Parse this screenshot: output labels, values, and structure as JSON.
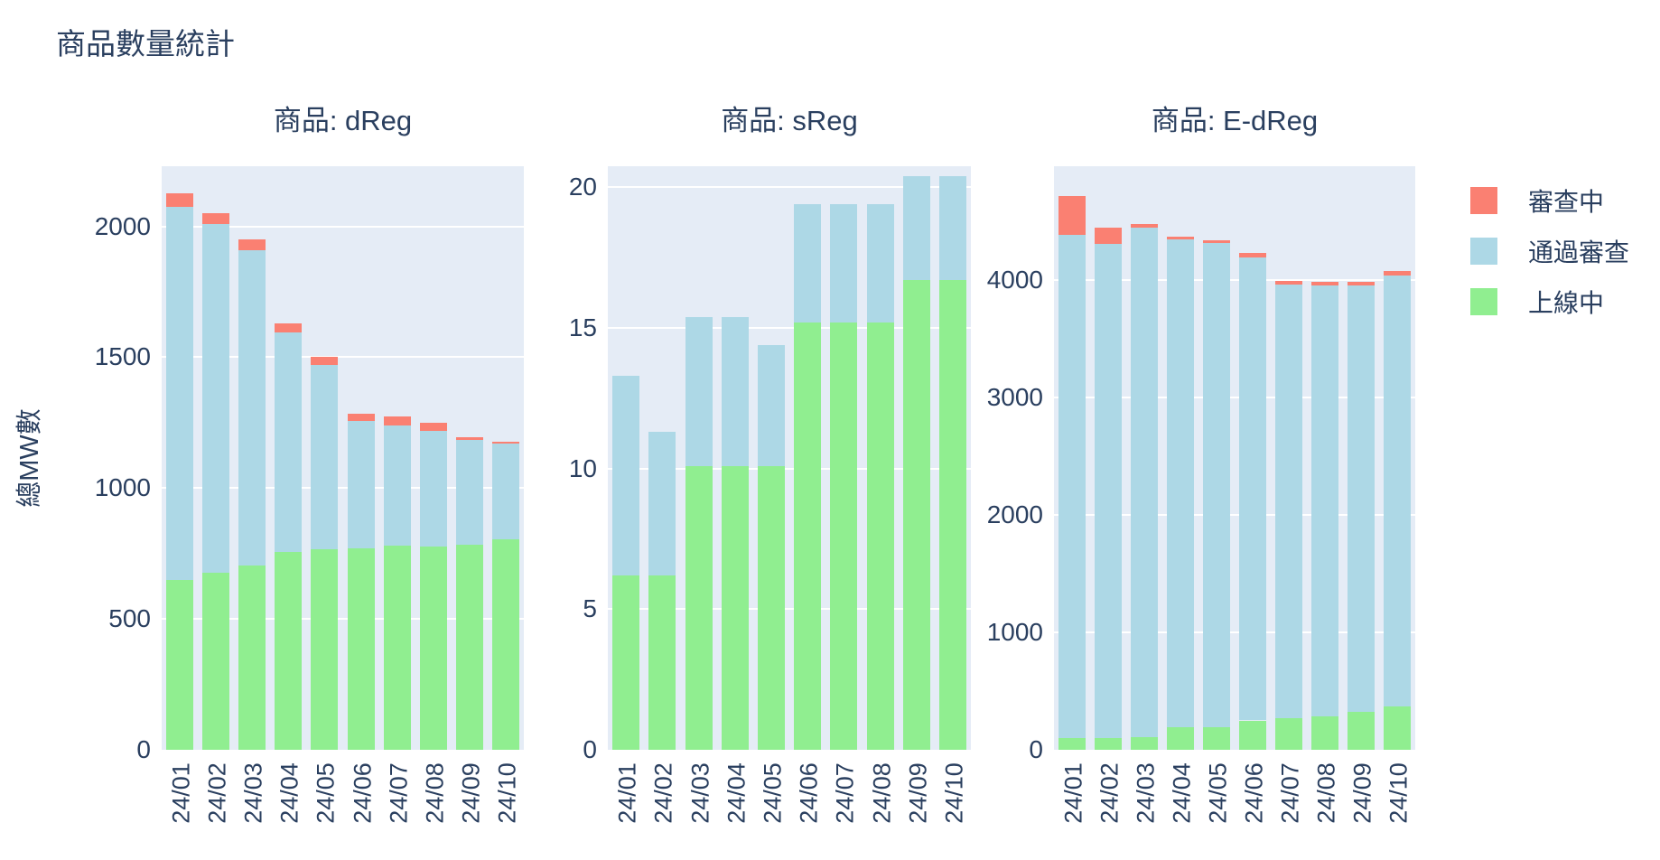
{
  "figure_title": "商品數量統計",
  "y_axis_title": "總MW數",
  "legend": {
    "items": [
      {
        "key": "in-review",
        "label": "審查中",
        "color": "#FA8072"
      },
      {
        "key": "approved",
        "label": "通過審查",
        "color": "#ADD8E6"
      },
      {
        "key": "online",
        "label": "上線中",
        "color": "#90EE90"
      }
    ]
  },
  "colors": {
    "plot_background": "#E5ECF6",
    "gridline": "#FFFFFF",
    "text": "#2A3F5F"
  },
  "chart_data": {
    "type": "bar",
    "stacked": true,
    "title": "商品數量統計",
    "ylabel": "總MW數",
    "grid": true,
    "legend_position": "top-right",
    "categories": [
      "24/01",
      "24/02",
      "24/03",
      "24/04",
      "24/05",
      "24/06",
      "24/07",
      "24/08",
      "24/09",
      "24/10"
    ],
    "subplots": [
      {
        "title": "商品: dReg",
        "ylim": [
          0,
          2230
        ],
        "yticks": [
          0,
          500,
          1000,
          1500,
          2000
        ],
        "series": [
          {
            "key": "online",
            "name": "上線中",
            "color": "#90EE90",
            "values": [
              650,
              675,
              705,
              755,
              765,
              770,
              780,
              775,
              785,
              805
            ]
          },
          {
            "key": "approved",
            "name": "通過審查",
            "color": "#ADD8E6",
            "values": [
              1425,
              1335,
              1205,
              840,
              705,
              485,
              460,
              445,
              400,
              365
            ]
          },
          {
            "key": "in-review",
            "name": "審查中",
            "color": "#FA8072",
            "values": [
              50,
              40,
              40,
              35,
              30,
              30,
              35,
              30,
              8,
              8
            ]
          }
        ]
      },
      {
        "title": "商品: sReg",
        "ylim": [
          0,
          20.75
        ],
        "yticks": [
          0,
          5,
          10,
          15,
          20
        ],
        "series": [
          {
            "key": "online",
            "name": "上線中",
            "color": "#90EE90",
            "values": [
              6.2,
              6.2,
              10.1,
              10.1,
              10.1,
              15.2,
              15.2,
              15.2,
              16.7,
              16.7
            ]
          },
          {
            "key": "approved",
            "name": "通過審查",
            "color": "#ADD8E6",
            "values": [
              7.1,
              5.1,
              5.3,
              5.3,
              4.3,
              4.2,
              4.2,
              4.2,
              3.7,
              3.7
            ]
          },
          {
            "key": "in-review",
            "name": "審查中",
            "color": "#FA8072",
            "values": [
              0,
              0,
              0,
              0,
              0,
              0,
              0,
              0,
              0,
              0
            ]
          }
        ]
      },
      {
        "title": "商品: E-dReg",
        "ylim": [
          0,
          4970
        ],
        "yticks": [
          0,
          1000,
          2000,
          3000,
          4000
        ],
        "series": [
          {
            "key": "online",
            "name": "上線中",
            "color": "#90EE90",
            "values": [
              100,
              100,
              105,
              190,
              190,
              250,
              270,
              285,
              320,
              370
            ]
          },
          {
            "key": "approved",
            "name": "通過審查",
            "color": "#ADD8E6",
            "values": [
              4285,
              4210,
              4340,
              4155,
              4125,
              3940,
              3690,
              3670,
              3635,
              3670
            ]
          },
          {
            "key": "in-review",
            "name": "審查中",
            "color": "#FA8072",
            "values": [
              330,
              135,
              30,
              25,
              25,
              40,
              30,
              30,
              30,
              40
            ]
          }
        ]
      }
    ]
  }
}
